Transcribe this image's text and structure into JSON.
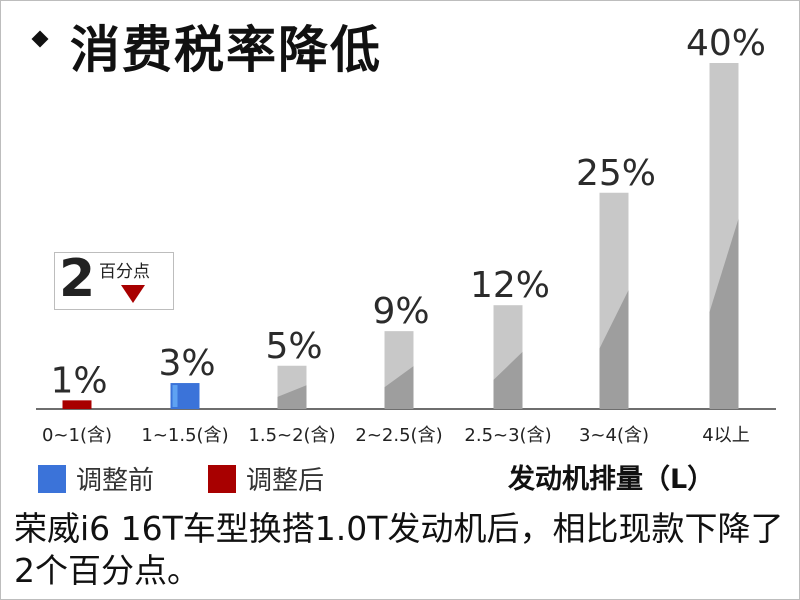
{
  "title": "消费税率降低",
  "badge": {
    "number": "2",
    "unit": "百分点"
  },
  "legend": [
    {
      "label": "调整前",
      "color": "#3b73d9"
    },
    {
      "label": "调整后",
      "color": "#a80000"
    }
  ],
  "xlabel": "发动机排量（L）",
  "caption": "荣威i6 16T车型换搭1.0T发动机后，相比现款下降了2个百分点。",
  "chart_data": {
    "type": "bar",
    "categories": [
      "0~1(含)",
      "1~1.5(含)",
      "1.5~2(含)",
      "2~2.5(含)",
      "2.5~3(含)",
      "3~4(含)",
      "4以上"
    ],
    "values": [
      1,
      3,
      5,
      9,
      12,
      25,
      40
    ],
    "value_labels": [
      "1%",
      "3%",
      "5%",
      "9%",
      "12%",
      "25%",
      "40%"
    ],
    "bar_colors": [
      "#a80000",
      "#3b73d9",
      "#c8c8c8",
      "#c8c8c8",
      "#c8c8c8",
      "#c8c8c8",
      "#c8c8c8"
    ],
    "xlabel": "发动机排量（L）",
    "ylabel": "",
    "unit": "%"
  }
}
